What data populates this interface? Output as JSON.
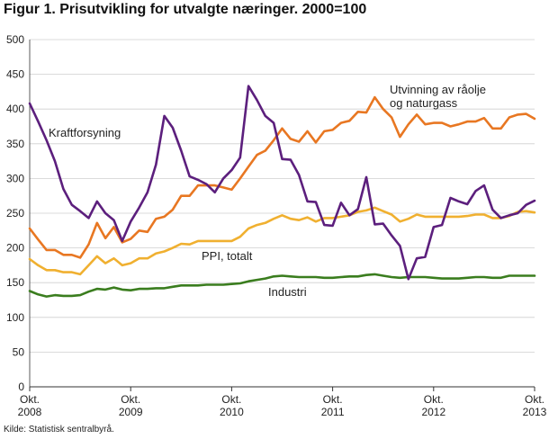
{
  "title": "Figur 1. Prisutvikling for utvalgte næringer. 2000=100",
  "source": "Kilde: Statistisk sentralbyrå.",
  "chart_data": {
    "type": "line",
    "title": "Figur 1. Prisutvikling for utvalgte næringer. 2000=100",
    "xlabel": "",
    "ylabel": "",
    "ylim": [
      0,
      500
    ],
    "yticks": [
      0,
      50,
      100,
      150,
      200,
      250,
      300,
      350,
      400,
      450,
      500
    ],
    "grid": true,
    "xticks": [
      {
        "x": 0,
        "line1": "Okt.",
        "line2": "2008"
      },
      {
        "x": 12,
        "line1": "Okt.",
        "line2": "2009"
      },
      {
        "x": 24,
        "line1": "Okt.",
        "line2": "2010"
      },
      {
        "x": 36,
        "line1": "Okt.",
        "line2": "2011"
      },
      {
        "x": 48,
        "line1": "Okt.",
        "line2": "2012"
      },
      {
        "x": 60,
        "line1": "Okt.",
        "line2": "2013"
      }
    ],
    "xlim": [
      0,
      60
    ],
    "series": [
      {
        "name": "Kraftforsyning",
        "label": "Kraftforsyning",
        "color": "#5c1f7d",
        "values": [
          408,
          382,
          355,
          325,
          285,
          262,
          253,
          243,
          267,
          250,
          240,
          210,
          238,
          258,
          280,
          320,
          390,
          373,
          340,
          303,
          298,
          292,
          280,
          300,
          312,
          330,
          433,
          413,
          390,
          380,
          328,
          327,
          305,
          267,
          266,
          233,
          232,
          265,
          247,
          256,
          302,
          234,
          235,
          218,
          203,
          155,
          185,
          187,
          230,
          233,
          272,
          267,
          263,
          282,
          290,
          255,
          243,
          247,
          250,
          262,
          268
        ]
      },
      {
        "name": "Utvinning av råolje og naturgass",
        "label1": "Utvinning av råolje",
        "label2": "og naturgass",
        "color": "#e87722",
        "values": [
          228,
          212,
          197,
          197,
          190,
          190,
          186,
          205,
          236,
          214,
          230,
          208,
          213,
          225,
          223,
          242,
          245,
          255,
          275,
          275,
          290,
          290,
          290,
          287,
          284,
          300,
          317,
          334,
          340,
          355,
          372,
          357,
          353,
          368,
          352,
          368,
          370,
          380,
          383,
          396,
          395,
          417,
          400,
          388,
          360,
          378,
          392,
          378,
          380,
          380,
          375,
          378,
          382,
          382,
          387,
          372,
          372,
          388,
          392,
          393,
          386
        ]
      },
      {
        "name": "PPI, totalt",
        "label": "PPI, totalt",
        "color": "#f0b030",
        "values": [
          184,
          175,
          168,
          168,
          165,
          165,
          162,
          175,
          188,
          178,
          185,
          175,
          178,
          185,
          185,
          192,
          195,
          200,
          206,
          205,
          210,
          210,
          210,
          210,
          210,
          216,
          228,
          233,
          236,
          242,
          247,
          242,
          240,
          244,
          238,
          243,
          243,
          245,
          247,
          252,
          254,
          258,
          253,
          248,
          238,
          242,
          248,
          245,
          245,
          245,
          245,
          245,
          246,
          248,
          248,
          243,
          243,
          246,
          252,
          253,
          251
        ]
      },
      {
        "name": "Industri",
        "label": "Industri",
        "color": "#3a7d1e",
        "values": [
          138,
          133,
          130,
          132,
          131,
          131,
          132,
          137,
          141,
          140,
          143,
          140,
          139,
          141,
          141,
          142,
          142,
          144,
          146,
          146,
          146,
          147,
          147,
          147,
          148,
          149,
          152,
          154,
          156,
          159,
          160,
          159,
          158,
          158,
          158,
          157,
          157,
          158,
          159,
          159,
          161,
          162,
          160,
          158,
          157,
          158,
          158,
          158,
          157,
          156,
          156,
          156,
          157,
          158,
          158,
          157,
          157,
          160,
          160,
          160,
          160
        ]
      }
    ]
  }
}
